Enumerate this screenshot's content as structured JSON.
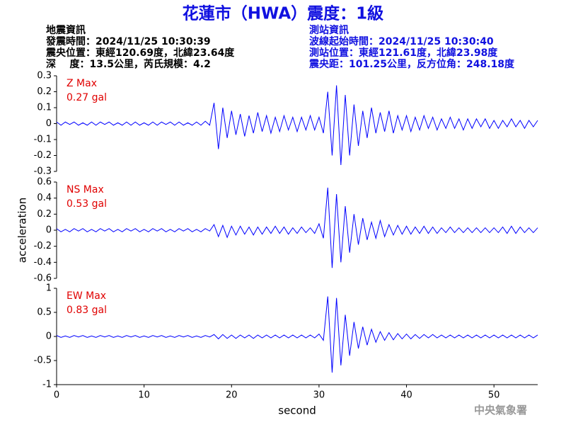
{
  "header": {
    "title": "花蓮市（HWA）震度：1級",
    "left": [
      "地震資訊",
      "發震時間：2024/11/25 10:30:39",
      "震央位置：東經120.69度，北緯23.64度",
      "深    度：13.5公里，芮氏規模：4.2"
    ],
    "right": [
      "測站資訊",
      "波線起始時間：2024/11/25 10:30:40",
      "測站位置：東經121.61度，北緯23.98度",
      "震央距：101.25公里，反方位角：248.18度"
    ]
  },
  "footer": "中央氣象署",
  "chart_data": [
    {
      "type": "line",
      "label": "Z Max",
      "max_label": "0.27 gal",
      "color": "#0000ff",
      "label_color": "#e00000",
      "xlim": [
        0,
        55
      ],
      "ylim": [
        -0.3,
        0.3
      ],
      "yticks": [
        0.3,
        0.2,
        0.1,
        0,
        -0.1,
        -0.2,
        -0.3
      ],
      "x": [
        0,
        0.5,
        1,
        1.5,
        2,
        2.5,
        3,
        3.5,
        4,
        4.5,
        5,
        5.5,
        6,
        6.5,
        7,
        7.5,
        8,
        8.5,
        9,
        9.5,
        10,
        10.5,
        11,
        11.5,
        12,
        12.5,
        13,
        13.5,
        14,
        14.5,
        15,
        15.5,
        16,
        16.5,
        17,
        17.5,
        18,
        18.5,
        19,
        19.5,
        20,
        20.5,
        21,
        21.5,
        22,
        22.5,
        23,
        23.5,
        24,
        24.5,
        25,
        25.5,
        26,
        26.5,
        27,
        27.5,
        28,
        28.5,
        29,
        29.5,
        30,
        30.5,
        31,
        31.5,
        32,
        32.5,
        33,
        33.5,
        34,
        34.5,
        35,
        35.5,
        36,
        36.5,
        37,
        37.5,
        38,
        38.5,
        39,
        39.5,
        40,
        40.5,
        41,
        41.5,
        42,
        42.5,
        43,
        43.5,
        44,
        44.5,
        45,
        45.5,
        46,
        46.5,
        47,
        47.5,
        48,
        48.5,
        49,
        49.5,
        50,
        50.5,
        51,
        51.5,
        52,
        52.5,
        53,
        53.5,
        54,
        54.5,
        55
      ],
      "values": [
        0.01,
        -0.01,
        0.01,
        -0.005,
        0.01,
        -0.01,
        0.005,
        -0.01,
        0.01,
        -0.01,
        0.01,
        -0.005,
        0.01,
        -0.01,
        0.005,
        -0.01,
        0.01,
        -0.01,
        0.01,
        -0.01,
        0.005,
        -0.01,
        0.01,
        -0.01,
        0.01,
        -0.005,
        0.01,
        -0.01,
        0.01,
        -0.01,
        0.005,
        -0.01,
        0.01,
        -0.01,
        0.015,
        -0.01,
        0.13,
        -0.16,
        0.1,
        -0.09,
        0.08,
        -0.07,
        0.06,
        -0.08,
        0.05,
        -0.06,
        0.07,
        -0.05,
        0.05,
        -0.06,
        0.04,
        -0.05,
        0.05,
        -0.04,
        0.04,
        -0.05,
        0.04,
        -0.04,
        0.05,
        -0.04,
        0.04,
        -0.06,
        0.2,
        -0.2,
        0.24,
        -0.26,
        0.18,
        -0.2,
        0.12,
        -0.14,
        0.08,
        -0.09,
        0.1,
        -0.06,
        0.07,
        -0.05,
        0.08,
        -0.06,
        0.05,
        -0.04,
        0.05,
        -0.05,
        0.04,
        -0.04,
        0.05,
        -0.03,
        0.04,
        -0.04,
        0.03,
        -0.03,
        0.04,
        -0.03,
        0.03,
        -0.04,
        0.03,
        -0.03,
        0.03,
        -0.02,
        0.03,
        -0.03,
        0.02,
        -0.03,
        0.02,
        -0.02,
        0.03,
        -0.02,
        0.02,
        -0.03,
        0.02,
        -0.02,
        0.02
      ]
    },
    {
      "type": "line",
      "label": "NS Max",
      "max_label": "0.53 gal",
      "color": "#0000ff",
      "label_color": "#e00000",
      "ylabel": "acceleration",
      "xlim": [
        0,
        55
      ],
      "ylim": [
        -0.6,
        0.6
      ],
      "yticks": [
        0.6,
        0.4,
        0.2,
        0,
        -0.2,
        -0.4,
        -0.6
      ],
      "x": [
        0,
        0.5,
        1,
        1.5,
        2,
        2.5,
        3,
        3.5,
        4,
        4.5,
        5,
        5.5,
        6,
        6.5,
        7,
        7.5,
        8,
        8.5,
        9,
        9.5,
        10,
        10.5,
        11,
        11.5,
        12,
        12.5,
        13,
        13.5,
        14,
        14.5,
        15,
        15.5,
        16,
        16.5,
        17,
        17.5,
        18,
        18.5,
        19,
        19.5,
        20,
        20.5,
        21,
        21.5,
        22,
        22.5,
        23,
        23.5,
        24,
        24.5,
        25,
        25.5,
        26,
        26.5,
        27,
        27.5,
        28,
        28.5,
        29,
        29.5,
        30,
        30.5,
        31,
        31.5,
        32,
        32.5,
        33,
        33.5,
        34,
        34.5,
        35,
        35.5,
        36,
        36.5,
        37,
        37.5,
        38,
        38.5,
        39,
        39.5,
        40,
        40.5,
        41,
        41.5,
        42,
        42.5,
        43,
        43.5,
        44,
        44.5,
        45,
        45.5,
        46,
        46.5,
        47,
        47.5,
        48,
        48.5,
        49,
        49.5,
        50,
        50.5,
        51,
        51.5,
        52,
        52.5,
        53,
        53.5,
        54,
        54.5,
        55
      ],
      "values": [
        0.02,
        -0.02,
        0.01,
        -0.02,
        0.02,
        -0.01,
        0.02,
        -0.02,
        0.01,
        -0.02,
        0.02,
        -0.01,
        0.02,
        -0.02,
        0.01,
        -0.02,
        0.02,
        -0.01,
        0.02,
        -0.02,
        0.01,
        -0.02,
        0.02,
        -0.01,
        0.02,
        -0.02,
        0.01,
        -0.02,
        0.02,
        -0.01,
        0.02,
        -0.02,
        0.01,
        -0.02,
        0.02,
        -0.01,
        0.07,
        -0.08,
        0.06,
        -0.09,
        0.05,
        -0.06,
        0.05,
        -0.05,
        0.04,
        -0.06,
        0.04,
        -0.05,
        0.04,
        -0.04,
        0.05,
        -0.04,
        0.04,
        -0.05,
        0.03,
        -0.04,
        0.04,
        -0.03,
        0.03,
        -0.04,
        0.08,
        -0.1,
        0.53,
        -0.47,
        0.45,
        -0.4,
        0.3,
        -0.28,
        0.2,
        -0.18,
        0.15,
        -0.12,
        0.1,
        -0.1,
        0.12,
        -0.08,
        0.07,
        -0.06,
        0.06,
        -0.05,
        0.05,
        -0.05,
        0.04,
        -0.04,
        0.05,
        -0.04,
        0.04,
        -0.04,
        0.03,
        -0.03,
        0.04,
        -0.03,
        0.03,
        -0.03,
        0.03,
        -0.03,
        0.03,
        -0.03,
        0.03,
        -0.03,
        0.03,
        -0.03,
        0.04,
        -0.04,
        0.05,
        -0.04,
        0.04,
        -0.03,
        0.03,
        -0.03,
        0.03
      ]
    },
    {
      "type": "line",
      "label": "EW Max",
      "max_label": "0.83 gal",
      "color": "#0000ff",
      "label_color": "#e00000",
      "xlabel": "second",
      "xlim": [
        0,
        55
      ],
      "xticks": [
        0,
        10,
        20,
        30,
        40,
        50
      ],
      "ylim": [
        -1,
        1
      ],
      "yticks": [
        1,
        0.5,
        0,
        -0.5,
        -1
      ],
      "x": [
        0,
        0.5,
        1,
        1.5,
        2,
        2.5,
        3,
        3.5,
        4,
        4.5,
        5,
        5.5,
        6,
        6.5,
        7,
        7.5,
        8,
        8.5,
        9,
        9.5,
        10,
        10.5,
        11,
        11.5,
        12,
        12.5,
        13,
        13.5,
        14,
        14.5,
        15,
        15.5,
        16,
        16.5,
        17,
        17.5,
        18,
        18.5,
        19,
        19.5,
        20,
        20.5,
        21,
        21.5,
        22,
        22.5,
        23,
        23.5,
        24,
        24.5,
        25,
        25.5,
        26,
        26.5,
        27,
        27.5,
        28,
        28.5,
        29,
        29.5,
        30,
        30.5,
        31,
        31.5,
        32,
        32.5,
        33,
        33.5,
        34,
        34.5,
        35,
        35.5,
        36,
        36.5,
        37,
        37.5,
        38,
        38.5,
        39,
        39.5,
        40,
        40.5,
        41,
        41.5,
        42,
        42.5,
        43,
        43.5,
        44,
        44.5,
        45,
        45.5,
        46,
        46.5,
        47,
        47.5,
        48,
        48.5,
        49,
        49.5,
        50,
        50.5,
        51,
        51.5,
        52,
        52.5,
        53,
        53.5,
        54,
        54.5,
        55
      ],
      "values": [
        0.02,
        -0.02,
        0.01,
        -0.02,
        0.02,
        -0.01,
        0.02,
        -0.02,
        0.01,
        -0.02,
        0.02,
        -0.01,
        0.02,
        -0.02,
        0.01,
        -0.02,
        0.02,
        -0.01,
        0.02,
        -0.02,
        0.01,
        -0.02,
        0.02,
        -0.01,
        0.02,
        -0.02,
        0.01,
        -0.02,
        0.02,
        -0.01,
        0.02,
        -0.02,
        0.01,
        -0.02,
        0.02,
        -0.01,
        0.04,
        -0.05,
        0.04,
        -0.04,
        0.03,
        -0.04,
        0.03,
        -0.03,
        0.03,
        -0.04,
        0.03,
        -0.03,
        0.03,
        -0.03,
        0.03,
        -0.03,
        0.03,
        -0.03,
        0.03,
        -0.03,
        0.03,
        -0.03,
        0.03,
        -0.03,
        0.05,
        -0.08,
        0.83,
        -0.75,
        0.8,
        -0.6,
        0.45,
        -0.4,
        0.3,
        -0.25,
        0.2,
        -0.18,
        0.15,
        -0.12,
        0.1,
        -0.08,
        0.08,
        -0.07,
        0.06,
        -0.05,
        0.05,
        -0.05,
        0.04,
        -0.04,
        0.04,
        -0.03,
        0.04,
        -0.03,
        0.03,
        -0.03,
        0.03,
        -0.03,
        0.03,
        -0.03,
        0.03,
        -0.03,
        0.03,
        -0.03,
        0.03,
        -0.03,
        0.03,
        -0.03,
        0.03,
        -0.03,
        0.03,
        -0.03,
        0.03,
        -0.03,
        0.03,
        -0.03,
        0.03
      ]
    }
  ]
}
